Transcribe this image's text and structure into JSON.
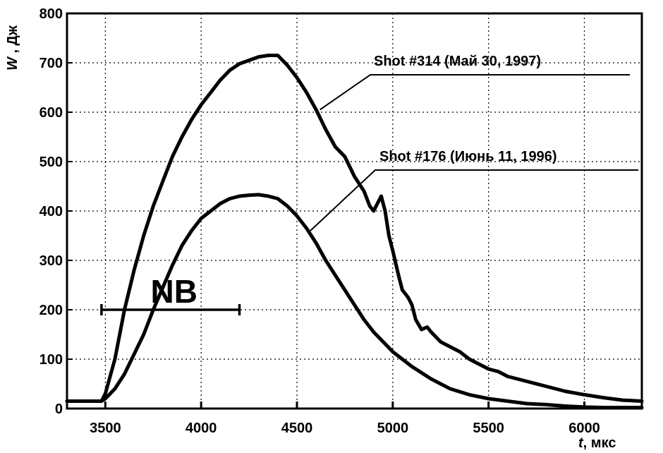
{
  "chart_data": {
    "type": "line",
    "xlabel_italic": "t",
    "xlabel_unit": ", мкс",
    "ylabel_italic": "W",
    "ylabel_unit": " , Дж",
    "xlim": [
      3300,
      6300
    ],
    "ylim": [
      0,
      800
    ],
    "xticks": [
      3500,
      4000,
      4500,
      5000,
      5500,
      6000
    ],
    "yticks": [
      0,
      100,
      200,
      300,
      400,
      500,
      600,
      700,
      800
    ],
    "grid": true,
    "series": [
      {
        "name": "Shot #314 (Май 30, 1997)",
        "x": [
          3300,
          3450,
          3480,
          3500,
          3550,
          3600,
          3650,
          3700,
          3750,
          3800,
          3850,
          3900,
          3950,
          4000,
          4050,
          4100,
          4150,
          4200,
          4250,
          4300,
          4350,
          4400,
          4450,
          4500,
          4550,
          4600,
          4650,
          4700,
          4750,
          4800,
          4850,
          4880,
          4900,
          4920,
          4940,
          4960,
          4980,
          5000,
          5030,
          5050,
          5080,
          5100,
          5120,
          5150,
          5180,
          5200,
          5250,
          5300,
          5350,
          5400,
          5450,
          5500,
          5550,
          5600,
          5700,
          5800,
          5900,
          6000,
          6100,
          6200,
          6300
        ],
        "y": [
          15,
          15,
          15,
          30,
          100,
          200,
          280,
          350,
          410,
          460,
          510,
          550,
          585,
          615,
          640,
          665,
          685,
          698,
          705,
          712,
          715,
          715,
          695,
          670,
          640,
          605,
          565,
          530,
          510,
          470,
          440,
          410,
          400,
          415,
          430,
          400,
          350,
          320,
          270,
          240,
          225,
          210,
          180,
          160,
          165,
          155,
          135,
          125,
          115,
          100,
          90,
          80,
          75,
          65,
          55,
          45,
          35,
          28,
          22,
          17,
          15
        ]
      },
      {
        "name": "Shot #176 (Июнь 11, 1996)",
        "x": [
          3300,
          3450,
          3480,
          3500,
          3550,
          3600,
          3650,
          3700,
          3750,
          3800,
          3850,
          3900,
          3950,
          4000,
          4050,
          4100,
          4150,
          4200,
          4250,
          4300,
          4350,
          4400,
          4450,
          4500,
          4550,
          4600,
          4650,
          4700,
          4750,
          4800,
          4850,
          4900,
          4950,
          5000,
          5100,
          5200,
          5300,
          5400,
          5500,
          5600,
          5700,
          5800,
          5900,
          6000,
          6100,
          6200,
          6300
        ],
        "y": [
          15,
          15,
          15,
          20,
          40,
          70,
          110,
          150,
          200,
          245,
          290,
          330,
          360,
          385,
          400,
          415,
          425,
          430,
          432,
          433,
          430,
          425,
          410,
          390,
          365,
          335,
          300,
          270,
          240,
          210,
          180,
          155,
          135,
          115,
          85,
          60,
          40,
          28,
          20,
          15,
          10,
          8,
          5,
          3,
          2,
          2,
          2
        ]
      }
    ],
    "annotations": [
      {
        "text": "NB",
        "span_x": [
          3480,
          4200
        ],
        "y": 200
      }
    ],
    "legend": "labels with leader lines"
  }
}
